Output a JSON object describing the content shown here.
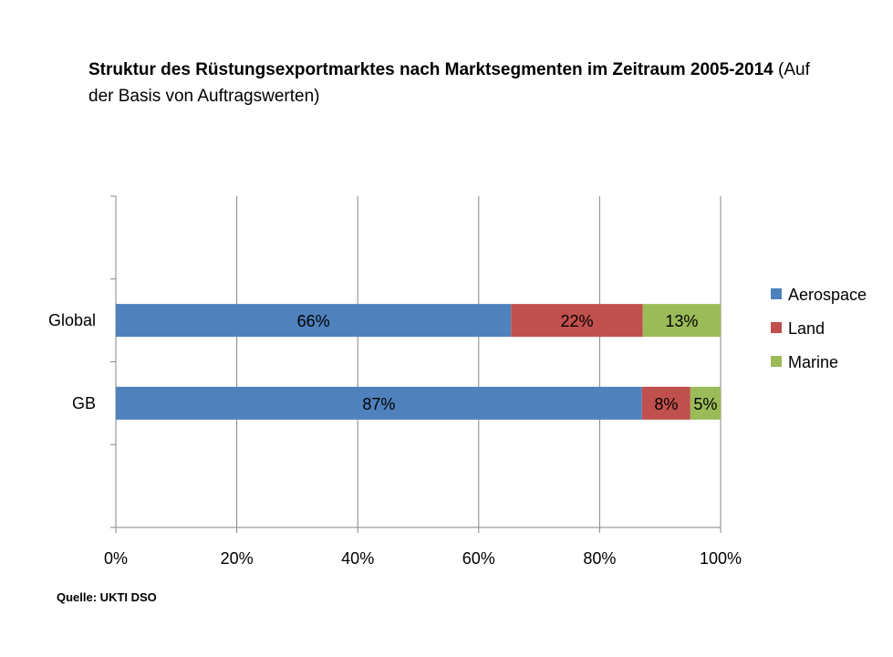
{
  "chart_data": {
    "type": "bar",
    "orientation": "horizontal",
    "stacked": true,
    "title_bold": "Struktur des Rüstungsexportmarktes nach Marktsegmenten im Zeitraum 2005-2014",
    "title_rest": "(Auf der Basis von Auftragswerten)",
    "categories": [
      "Global",
      "GB"
    ],
    "series": [
      {
        "name": "Aerospace",
        "color": "#4f81bd",
        "values": [
          66,
          87
        ],
        "labels": [
          "66%",
          "87%"
        ]
      },
      {
        "name": "Land",
        "color": "#c0504d",
        "values": [
          22,
          8
        ],
        "labels": [
          "22%",
          "8%"
        ]
      },
      {
        "name": "Marine",
        "color": "#9bbb59",
        "values": [
          13,
          5
        ],
        "labels": [
          "13%",
          "5%"
        ]
      }
    ],
    "xlim": [
      0,
      100
    ],
    "xticks": [
      "0%",
      "20%",
      "40%",
      "60%",
      "80%",
      "100%"
    ],
    "grid": true,
    "legend_position": "right"
  },
  "source": "Quelle: UKTI DSO"
}
